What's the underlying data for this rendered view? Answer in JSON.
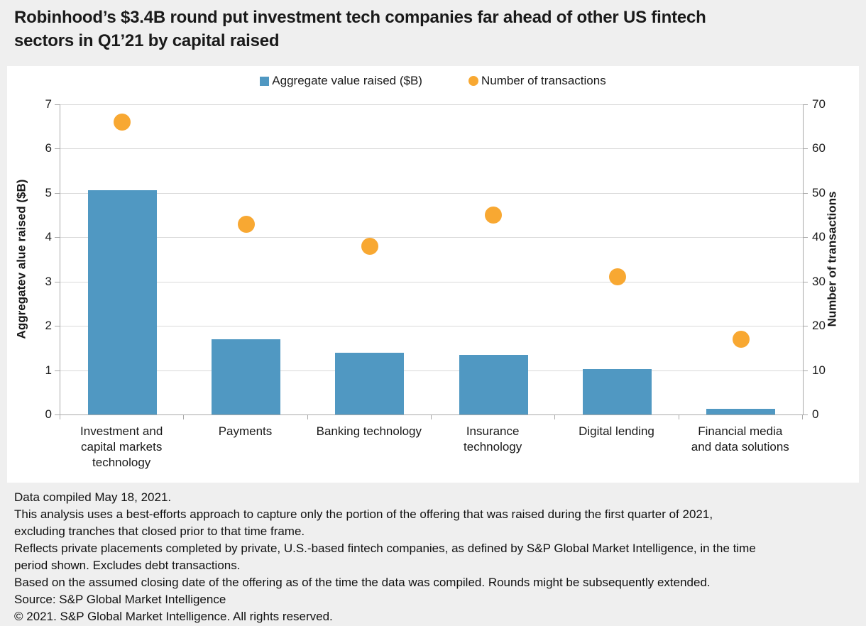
{
  "header": {
    "title": "Robinhood’s $3.4B round put investment tech companies far ahead of other US fintech sectors in Q1’21 by capital raised",
    "title_lines": [
      "Robinhood’s $3.4B round put investment tech companies far ahead of other US fintech",
      "sectors in Q1’21 by capital raised"
    ]
  },
  "legend": {
    "items": [
      {
        "label": "Aggregate value raised ($B)",
        "marker": "square",
        "color": "#5098c2"
      },
      {
        "label": "Number of transactions",
        "marker": "circle",
        "color": "#f8a832"
      }
    ]
  },
  "chart_data": {
    "type": "bar",
    "subtype": "combo bar + scatter, dual y-axes",
    "categories": [
      "Investment and capital markets technology",
      "Payments",
      "Banking technology",
      "Insurance technology",
      "Digital lending",
      "Financial media and data solutions"
    ],
    "categories_wrapped": [
      "Investment and\ncapital markets\ntechnology",
      "Payments",
      "Banking technology",
      "Insurance\ntechnology",
      "Digital lending",
      "Financial media\nand data solutions"
    ],
    "series": [
      {
        "name": "Aggregate value raised ($B)",
        "type": "bar",
        "axis": "left",
        "color": "#5098c2",
        "values": [
          5.06,
          1.7,
          1.39,
          1.34,
          1.02,
          0.13
        ]
      },
      {
        "name": "Number of transactions",
        "type": "scatter",
        "axis": "right",
        "color": "#f8a832",
        "values": [
          66,
          43,
          38,
          45,
          31,
          17
        ]
      }
    ],
    "left_axis": {
      "title": "Aggregatev alue raised ($B)",
      "min": 0,
      "max": 7,
      "ticks": [
        0,
        1,
        2,
        3,
        4,
        5,
        6,
        7
      ]
    },
    "right_axis": {
      "title": "Number of transactions",
      "min": 0,
      "max": 70,
      "ticks": [
        0,
        10,
        20,
        30,
        40,
        50,
        60,
        70
      ]
    },
    "grid": "horizontal gridlines on",
    "legend_position": "top"
  },
  "footnotes": {
    "lines": [
      "Data compiled May 18, 2021.",
      "This analysis uses a best-efforts approach to capture only the portion of the offering that was raised during the first quarter of 2021,",
      "excluding tranches that closed prior to that time frame.",
      "Reflects private placements completed by private, U.S.-based fintech companies, as defined by S&P Global Market Intelligence, in the time",
      "period shown. Excludes debt transactions.",
      "Based on the assumed closing date of the offering as of the time the data was compiled. Rounds might be subsequently extended.",
      "Source: S&P Global Market Intelligence",
      "© 2021. S&P Global Market Intelligence. All rights reserved."
    ]
  },
  "colors": {
    "page_bg": "#efefef",
    "panel_bg": "#ffffff",
    "bar": "#5098c2",
    "dot": "#f8a832",
    "gridline": "#d9d9d9",
    "axis": "#a9a9a9",
    "text": "#1a1a1a"
  }
}
